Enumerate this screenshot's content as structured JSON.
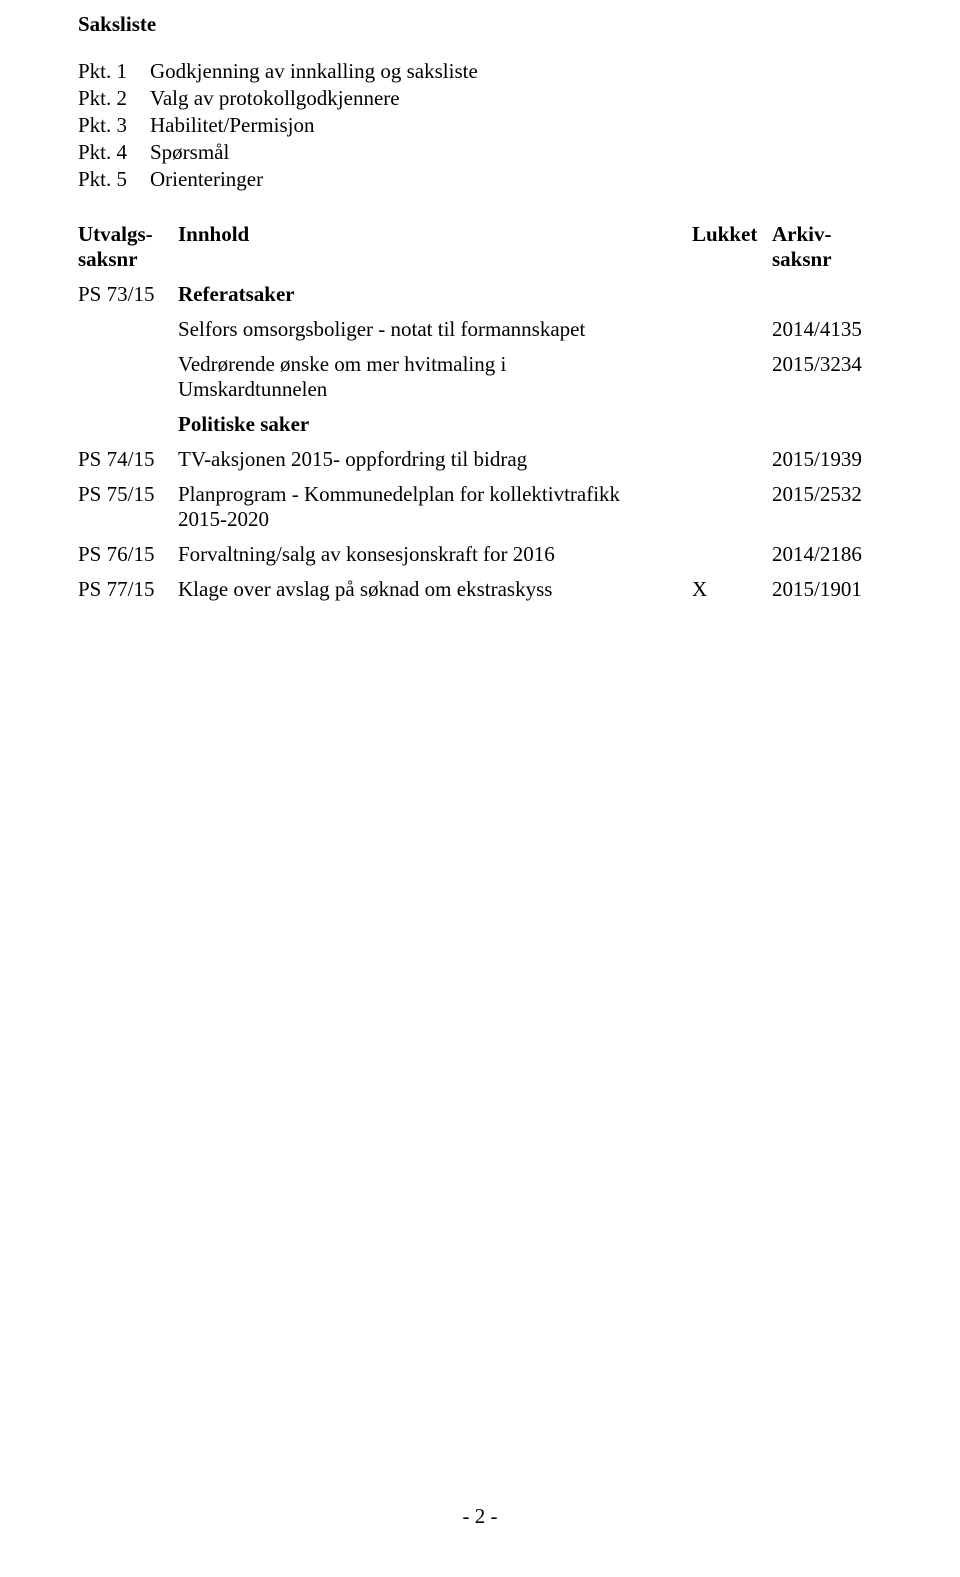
{
  "title": "Saksliste",
  "pkts": [
    {
      "label": "Pkt. 1",
      "text": "Godkjenning av innkalling og saksliste"
    },
    {
      "label": "Pkt. 2",
      "text": "Valg av protokollgodkjennere"
    },
    {
      "label": "Pkt. 3",
      "text": "Habilitet/Permisjon"
    },
    {
      "label": "Pkt. 4",
      "text": "Spørsmål"
    },
    {
      "label": "Pkt. 5",
      "text": "Orienteringer"
    }
  ],
  "headers": {
    "saksnr_line1": "Utvalgs-",
    "saksnr_line2": "saksnr",
    "innhold": "Innhold",
    "lukket": "Lukket",
    "arkiv_line1": "Arkiv-",
    "arkiv_line2": "saksnr"
  },
  "rows": {
    "r1": {
      "saksnr": "PS 73/15",
      "innhold": "Referatsaker",
      "lukket": "",
      "arkiv": ""
    },
    "sub1": {
      "innhold": "Selfors omsorgsboliger - notat til formannskapet",
      "lukket": "",
      "arkiv": "2014/4135"
    },
    "sub2_line1": "Vedrørende ønske om mer hvitmaling i",
    "sub2_line2": "Umskardtunnelen",
    "sub2_arkiv": "2015/3234",
    "sub3": {
      "innhold": "Politiske saker"
    },
    "r2": {
      "saksnr": "PS 74/15",
      "innhold": "TV-aksjonen 2015- oppfordring til bidrag",
      "lukket": "",
      "arkiv": "2015/1939"
    },
    "r3_saksnr": "PS 75/15",
    "r3_line1": "Planprogram - Kommunedelplan for kollektivtrafikk",
    "r3_line2": "2015-2020",
    "r3_arkiv": "2015/2532",
    "r4": {
      "saksnr": "PS 76/15",
      "innhold": "Forvaltning/salg av konsesjonskraft for 2016",
      "lukket": "",
      "arkiv": "2014/2186"
    },
    "r5": {
      "saksnr": "PS 77/15",
      "innhold": "Klage over avslag på søknad om ekstraskyss",
      "lukket": "X",
      "arkiv": "2015/1901"
    }
  },
  "footer": "- 2 -"
}
